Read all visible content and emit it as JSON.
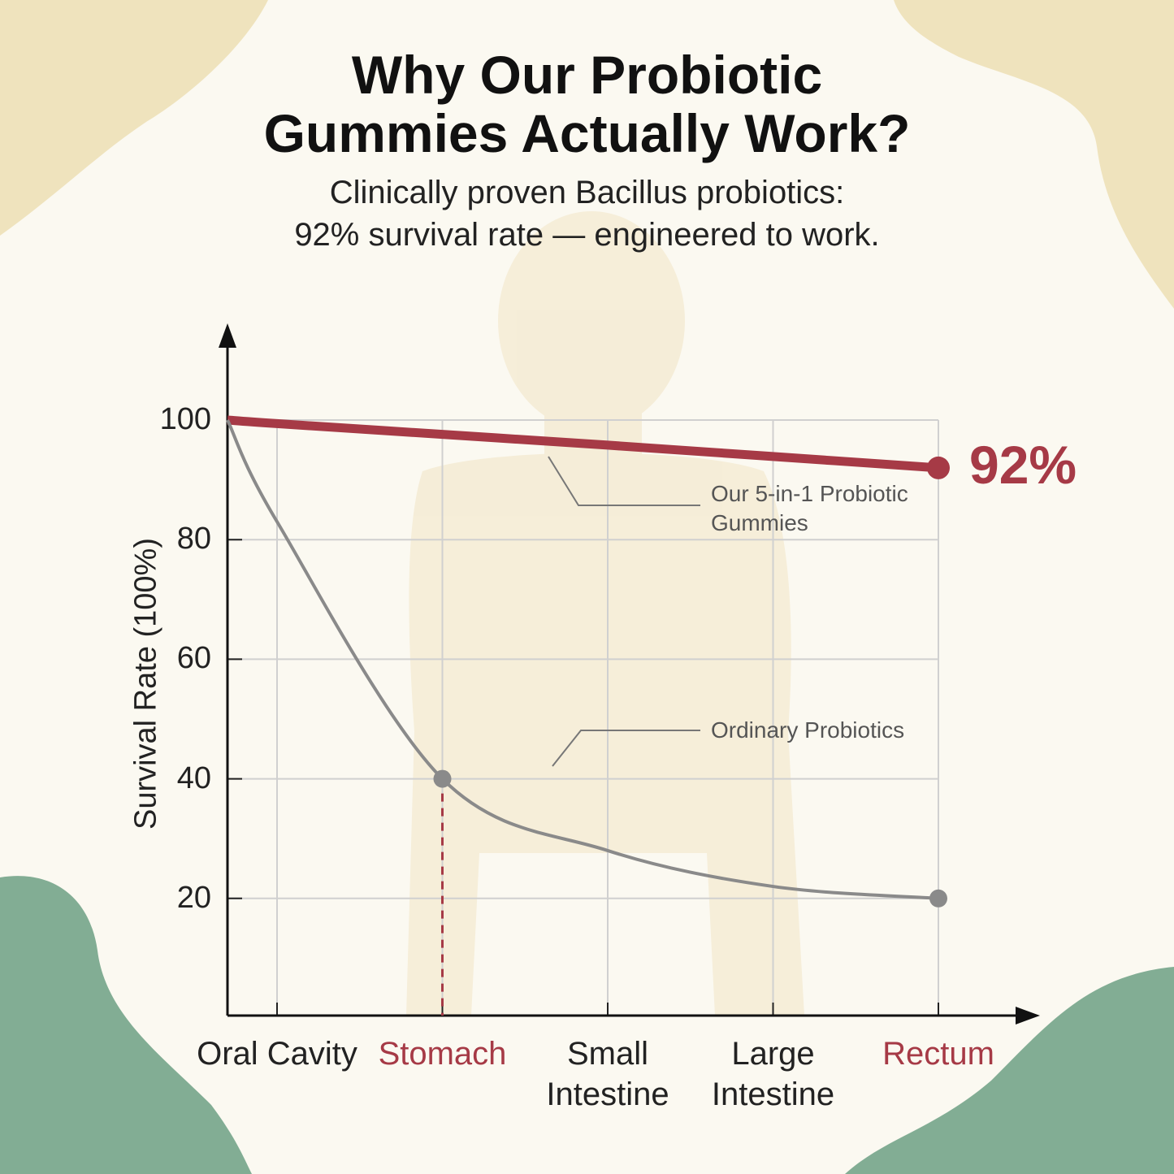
{
  "chart_data": {
    "type": "line",
    "title": [
      "Why Our Probiotic",
      "Gummies Actually Work?"
    ],
    "subtitle": [
      "Clinically proven Bacillus probiotics:",
      "92% survival rate — engineered to work."
    ],
    "y_label": "Survival Rate (100%)",
    "categories": [
      null,
      "Oral Cavity",
      "Stomach",
      "Small Intestine",
      "Large Intestine",
      "Rectum"
    ],
    "category_colors": [
      "#222222",
      "#222222",
      "#a63a46",
      "#222222",
      "#222222",
      "#a63a46"
    ],
    "series": [
      {
        "name": "Our 5-in-1 Probiotic Gummies",
        "color": "#a63a46",
        "values": [
          100,
          99.4,
          97.6,
          95.8,
          93.9,
          92
        ],
        "value_labels": [
          null,
          null,
          null,
          null,
          null,
          "92%"
        ]
      },
      {
        "name": "Ordinary Probiotics",
        "color": "#8a8a8a",
        "values": [
          100,
          83,
          40,
          28,
          22,
          20
        ]
      }
    ],
    "ylim": [
      0,
      100
    ],
    "yticks": [
      20,
      40,
      60,
      80,
      100
    ],
    "grid": true
  }
}
